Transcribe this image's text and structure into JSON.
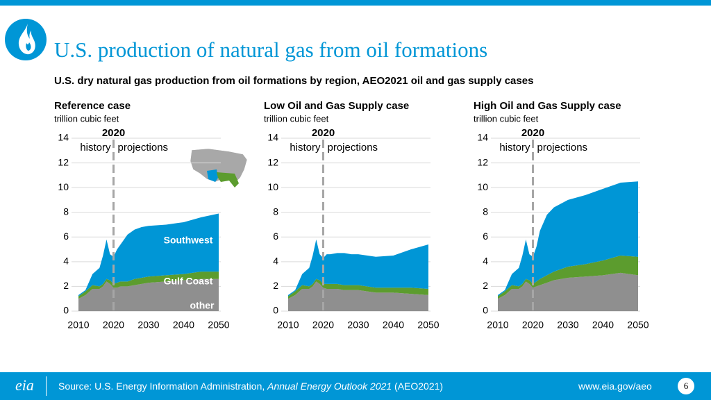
{
  "header": {
    "title": "U.S. production of natural gas from oil formations",
    "subtitle": "U.S. dry natural gas production from oil formations by region, AEO2021 oil and gas supply cases"
  },
  "chart_data": [
    {
      "type": "area",
      "title": "Reference case",
      "y_label": "trillion cubic feet",
      "divider": {
        "year": 2020,
        "left": "history",
        "right": "projections"
      },
      "x": [
        2010,
        2012,
        2014,
        2016,
        2017,
        2018,
        2019,
        2020,
        2021,
        2022,
        2024,
        2026,
        2028,
        2030,
        2035,
        2040,
        2045,
        2050
      ],
      "xlim": [
        2010,
        2050
      ],
      "xticks": [
        2010,
        2020,
        2030,
        2040,
        2050
      ],
      "ylim": [
        0,
        14
      ],
      "yticks": [
        0,
        2,
        4,
        6,
        8,
        10,
        12,
        14
      ],
      "grid": true,
      "series": [
        {
          "name": "other",
          "color": "#8f8f8f",
          "values": [
            1.0,
            1.3,
            1.8,
            1.8,
            2.0,
            2.4,
            2.2,
            1.9,
            1.9,
            2.0,
            2.0,
            2.1,
            2.2,
            2.3,
            2.4,
            2.5,
            2.6,
            2.6
          ]
        },
        {
          "name": "Gulf Coast",
          "color": "#5c9c2e",
          "values": [
            0.2,
            0.3,
            0.3,
            0.2,
            0.2,
            0.2,
            0.3,
            0.3,
            0.4,
            0.4,
            0.4,
            0.5,
            0.5,
            0.5,
            0.5,
            0.5,
            0.6,
            0.6
          ]
        },
        {
          "name": "Southwest",
          "color": "#0096d6",
          "values": [
            0.1,
            0.1,
            0.9,
            1.5,
            2.3,
            3.2,
            2.1,
            2.2,
            2.7,
            3.0,
            3.8,
            4.0,
            4.1,
            4.1,
            4.1,
            4.2,
            4.4,
            4.7
          ]
        }
      ]
    },
    {
      "type": "area",
      "title": "Low Oil and Gas Supply case",
      "y_label": "trillion cubic feet",
      "divider": {
        "year": 2020,
        "left": "history",
        "right": "projections"
      },
      "x": [
        2010,
        2012,
        2014,
        2016,
        2017,
        2018,
        2019,
        2020,
        2021,
        2022,
        2024,
        2026,
        2028,
        2030,
        2035,
        2040,
        2045,
        2050
      ],
      "xlim": [
        2010,
        2050
      ],
      "xticks": [
        2010,
        2020,
        2030,
        2040,
        2050
      ],
      "ylim": [
        0,
        14
      ],
      "yticks": [
        0,
        2,
        4,
        6,
        8,
        10,
        12,
        14
      ],
      "grid": true,
      "series": [
        {
          "color": "#8f8f8f",
          "values": [
            1.0,
            1.3,
            1.8,
            1.8,
            2.0,
            2.4,
            2.2,
            1.9,
            1.8,
            1.8,
            1.8,
            1.7,
            1.7,
            1.7,
            1.5,
            1.5,
            1.4,
            1.3
          ]
        },
        {
          "color": "#5c9c2e",
          "values": [
            0.2,
            0.3,
            0.3,
            0.2,
            0.2,
            0.2,
            0.3,
            0.3,
            0.4,
            0.4,
            0.4,
            0.4,
            0.4,
            0.4,
            0.4,
            0.4,
            0.5,
            0.5
          ]
        },
        {
          "color": "#0096d6",
          "values": [
            0.1,
            0.1,
            0.9,
            1.5,
            2.3,
            3.2,
            2.1,
            2.1,
            2.4,
            2.4,
            2.5,
            2.6,
            2.5,
            2.5,
            2.5,
            2.6,
            3.1,
            3.6
          ]
        }
      ]
    },
    {
      "type": "area",
      "title": "High Oil and Gas Supply case",
      "y_label": "trillion cubic feet",
      "divider": {
        "year": 2020,
        "left": "history",
        "right": "projections"
      },
      "x": [
        2010,
        2012,
        2014,
        2016,
        2017,
        2018,
        2019,
        2020,
        2021,
        2022,
        2024,
        2026,
        2028,
        2030,
        2035,
        2040,
        2045,
        2050
      ],
      "xlim": [
        2010,
        2050
      ],
      "xticks": [
        2010,
        2020,
        2030,
        2040,
        2050
      ],
      "ylim": [
        0,
        14
      ],
      "yticks": [
        0,
        2,
        4,
        6,
        8,
        10,
        12,
        14
      ],
      "grid": true,
      "series": [
        {
          "color": "#8f8f8f",
          "values": [
            1.0,
            1.3,
            1.8,
            1.8,
            2.0,
            2.4,
            2.2,
            1.9,
            2.0,
            2.1,
            2.3,
            2.5,
            2.6,
            2.7,
            2.8,
            2.9,
            3.1,
            2.9
          ]
        },
        {
          "color": "#5c9c2e",
          "values": [
            0.2,
            0.3,
            0.3,
            0.2,
            0.2,
            0.2,
            0.3,
            0.3,
            0.4,
            0.5,
            0.6,
            0.7,
            0.8,
            0.9,
            1.0,
            1.2,
            1.4,
            1.5
          ]
        },
        {
          "color": "#0096d6",
          "values": [
            0.1,
            0.1,
            0.9,
            1.5,
            2.3,
            3.2,
            2.1,
            2.2,
            2.8,
            3.9,
            4.9,
            5.2,
            5.3,
            5.4,
            5.6,
            5.8,
            5.9,
            6.1
          ]
        }
      ]
    }
  ],
  "footer": {
    "logo": "eia",
    "source_prefix": "Source: U.S. Energy Information Administration, ",
    "source_title": "Annual Energy Outlook 2021",
    "source_suffix": " (AEO2021)",
    "url": "www.eia.gov/aeo",
    "page": 6
  }
}
